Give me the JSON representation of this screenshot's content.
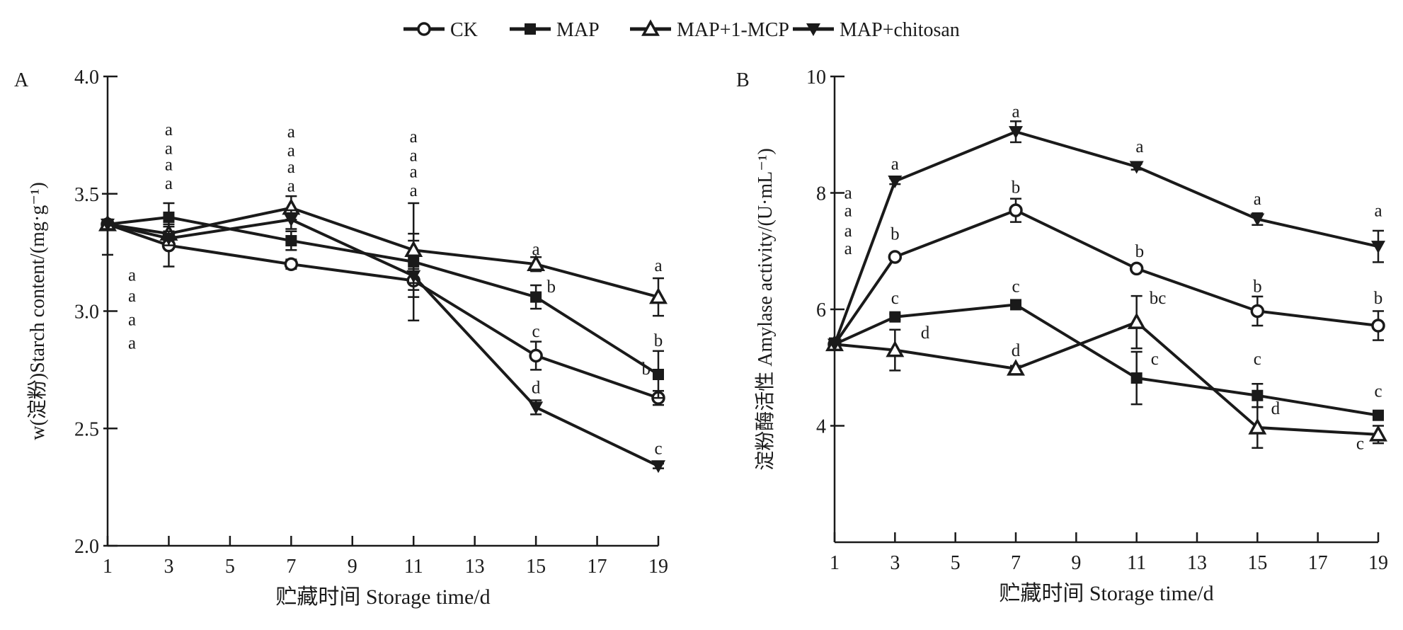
{
  "legend": [
    {
      "name": "CK",
      "marker": "open-circle"
    },
    {
      "name": "MAP",
      "marker": "filled-square"
    },
    {
      "name": "MAP+1-MCP",
      "marker": "open-triangle-up"
    },
    {
      "name": "MAP+chitosan",
      "marker": "filled-triangle-down"
    }
  ],
  "colors": {
    "line": "#1a1a1a",
    "background": "#ffffff"
  },
  "chart_data": [
    {
      "panel": "A",
      "type": "line",
      "xlabel": "贮藏时间 Storage time/d",
      "ylabel": "w(淀粉)Starch content/(mg·g⁻¹)",
      "x": [
        1,
        3,
        7,
        11,
        15,
        19
      ],
      "xticks": [
        1,
        3,
        5,
        7,
        9,
        11,
        13,
        15,
        17,
        19
      ],
      "xlim": [
        1,
        19
      ],
      "yticks": [
        2.0,
        2.5,
        3.0,
        3.5,
        4.0
      ],
      "ytick_labels": [
        "2.0",
        "2.5",
        "3.0",
        "3.5",
        "4.0"
      ],
      "ylim": [
        2.0,
        4.0
      ],
      "grid": false,
      "legend_position": "top",
      "series": [
        {
          "name": "CK",
          "values": [
            3.37,
            3.28,
            3.2,
            3.13,
            2.81,
            2.63
          ],
          "error": [
            0.13,
            0.09,
            0.02,
            0.17,
            0.06,
            0.03
          ]
        },
        {
          "name": "MAP",
          "values": [
            3.37,
            3.4,
            3.3,
            3.21,
            3.06,
            2.73
          ],
          "error": [
            0.02,
            0.06,
            0.04,
            0.12,
            0.05,
            0.1
          ]
        },
        {
          "name": "MAP+1-MCP",
          "values": [
            3.37,
            3.33,
            3.44,
            3.26,
            3.2,
            3.06
          ],
          "error": [
            0.02,
            0.03,
            0.05,
            0.2,
            0.03,
            0.08
          ]
        },
        {
          "name": "MAP+chitosan",
          "values": [
            3.37,
            3.31,
            3.39,
            3.15,
            2.59,
            2.34
          ],
          "error": [
            0.02,
            0.03,
            0.04,
            0.03,
            0.03,
            0.01
          ]
        }
      ],
      "annotations": [
        {
          "x": 1.8,
          "y": 2.84,
          "text": "a"
        },
        {
          "x": 1.8,
          "y": 2.94,
          "text": "a"
        },
        {
          "x": 1.8,
          "y": 3.04,
          "text": "a"
        },
        {
          "x": 1.8,
          "y": 3.13,
          "text": "a"
        },
        {
          "x": 3,
          "y": 3.52,
          "text": "a"
        },
        {
          "x": 3,
          "y": 3.6,
          "text": "a"
        },
        {
          "x": 3,
          "y": 3.67,
          "text": "a"
        },
        {
          "x": 3,
          "y": 3.75,
          "text": "a"
        },
        {
          "x": 7,
          "y": 3.51,
          "text": "a"
        },
        {
          "x": 7,
          "y": 3.59,
          "text": "a"
        },
        {
          "x": 7,
          "y": 3.66,
          "text": "a"
        },
        {
          "x": 7,
          "y": 3.74,
          "text": "a"
        },
        {
          "x": 11,
          "y": 3.49,
          "text": "a"
        },
        {
          "x": 11,
          "y": 3.57,
          "text": "a"
        },
        {
          "x": 11,
          "y": 3.64,
          "text": "a"
        },
        {
          "x": 11,
          "y": 3.72,
          "text": "a"
        },
        {
          "x": 15,
          "y": 3.24,
          "text": "a"
        },
        {
          "x": 15.5,
          "y": 3.08,
          "text": "b"
        },
        {
          "x": 15,
          "y": 2.89,
          "text": "c"
        },
        {
          "x": 15,
          "y": 2.65,
          "text": "d"
        },
        {
          "x": 19,
          "y": 3.17,
          "text": "a"
        },
        {
          "x": 19,
          "y": 2.85,
          "text": "b"
        },
        {
          "x": 18.6,
          "y": 2.73,
          "text": "b"
        },
        {
          "x": 19,
          "y": 2.39,
          "text": "c"
        }
      ]
    },
    {
      "panel": "B",
      "type": "line",
      "xlabel": "贮藏时间 Storage time/d",
      "ylabel": "淀粉酶活性 Amylase activity/(U·mL⁻¹)",
      "x": [
        1,
        3,
        7,
        11,
        15,
        19
      ],
      "xticks": [
        1,
        3,
        5,
        7,
        9,
        11,
        13,
        15,
        17,
        19
      ],
      "xlim": [
        1,
        19
      ],
      "yticks": [
        4,
        6,
        8,
        10
      ],
      "ytick_labels": [
        "4",
        "6",
        "8",
        "10"
      ],
      "ylim": [
        2,
        10
      ],
      "grid": false,
      "legend_position": "top",
      "series": [
        {
          "name": "CK",
          "values": [
            5.4,
            6.9,
            7.7,
            6.7,
            5.97,
            5.72
          ],
          "error": [
            0.1,
            0.05,
            0.2,
            0.05,
            0.25,
            0.25
          ]
        },
        {
          "name": "MAP",
          "values": [
            5.4,
            5.87,
            6.08,
            4.82,
            4.52,
            4.18
          ],
          "error": [
            0.1,
            0.05,
            0.05,
            0.45,
            0.2,
            0.05
          ]
        },
        {
          "name": "MAP+1-MCP",
          "values": [
            5.4,
            5.3,
            4.98,
            5.78,
            3.97,
            3.85
          ],
          "error": [
            0.1,
            0.35,
            0.05,
            0.45,
            0.35,
            0.15
          ]
        },
        {
          "name": "MAP+chitosan",
          "values": [
            5.4,
            8.2,
            9.05,
            8.45,
            7.55,
            7.08
          ],
          "error": [
            0.1,
            0.05,
            0.18,
            0.05,
            0.1,
            0.27
          ]
        }
      ],
      "annotations": [
        {
          "x": 1.45,
          "y": 6.95,
          "text": "a"
        },
        {
          "x": 1.45,
          "y": 7.25,
          "text": "a"
        },
        {
          "x": 1.45,
          "y": 7.6,
          "text": "a"
        },
        {
          "x": 1.45,
          "y": 7.9,
          "text": "a"
        },
        {
          "x": 3,
          "y": 8.4,
          "text": "a"
        },
        {
          "x": 3,
          "y": 7.2,
          "text": "b"
        },
        {
          "x": 3,
          "y": 6.1,
          "text": "c"
        },
        {
          "x": 4,
          "y": 5.5,
          "text": "d"
        },
        {
          "x": 7,
          "y": 9.3,
          "text": "a"
        },
        {
          "x": 7,
          "y": 8.0,
          "text": "b"
        },
        {
          "x": 7,
          "y": 6.3,
          "text": "c"
        },
        {
          "x": 7,
          "y": 5.2,
          "text": "d"
        },
        {
          "x": 11.1,
          "y": 8.7,
          "text": "a"
        },
        {
          "x": 11.1,
          "y": 6.9,
          "text": "b"
        },
        {
          "x": 11.7,
          "y": 6.1,
          "text": "bc"
        },
        {
          "x": 11.6,
          "y": 5.05,
          "text": "c"
        },
        {
          "x": 15,
          "y": 7.8,
          "text": "a"
        },
        {
          "x": 15,
          "y": 6.3,
          "text": "b"
        },
        {
          "x": 15,
          "y": 5.05,
          "text": "c"
        },
        {
          "x": 15.6,
          "y": 4.2,
          "text": "d"
        },
        {
          "x": 19,
          "y": 7.6,
          "text": "a"
        },
        {
          "x": 19,
          "y": 6.1,
          "text": "b"
        },
        {
          "x": 19,
          "y": 4.5,
          "text": "c"
        },
        {
          "x": 18.4,
          "y": 3.6,
          "text": "c"
        }
      ]
    }
  ]
}
